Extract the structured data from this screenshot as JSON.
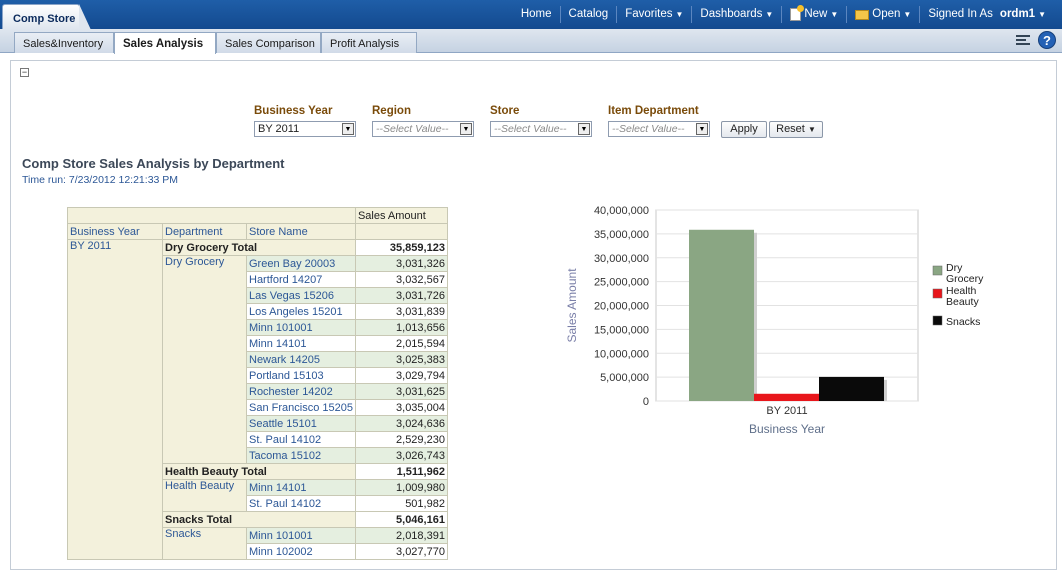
{
  "app": {
    "title": "Comp Store"
  },
  "global_nav": {
    "home": "Home",
    "catalog": "Catalog",
    "favorites": "Favorites",
    "dashboards": "Dashboards",
    "new": "New",
    "open": "Open",
    "signed_in_as": "Signed In As",
    "user": "ordm1"
  },
  "tabs": [
    "Sales&Inventory",
    "Sales Analysis",
    "Sales Comparison",
    "Profit Analysis"
  ],
  "active_tab": "Sales Analysis",
  "prompts": {
    "business_year": {
      "label": "Business Year",
      "value": "BY 2011"
    },
    "region": {
      "label": "Region",
      "placeholder": "--Select Value--"
    },
    "store": {
      "label": "Store",
      "placeholder": "--Select Value--"
    },
    "item_department": {
      "label": "Item Department",
      "placeholder": "--Select Value--"
    },
    "apply": "Apply",
    "reset": "Reset"
  },
  "report": {
    "title": "Comp Store Sales Analysis by Department",
    "time_run": "Time run: 7/23/2012 12:21:33 PM"
  },
  "table": {
    "measure_header": "Sales Amount",
    "col_headers": [
      "Business Year",
      "Department",
      "Store Name"
    ],
    "year": "BY 2011",
    "groups": [
      {
        "total_label": "Dry Grocery Total",
        "total": "35,859,123",
        "department": "Dry Grocery",
        "rows": [
          [
            "Green Bay 20003",
            "3,031,326"
          ],
          [
            "Hartford 14207",
            "3,032,567"
          ],
          [
            "Las Vegas 15206",
            "3,031,726"
          ],
          [
            "Los Angeles 15201",
            "3,031,839"
          ],
          [
            "Minn 101001",
            "1,013,656"
          ],
          [
            "Minn 14101",
            "2,015,594"
          ],
          [
            "Newark 14205",
            "3,025,383"
          ],
          [
            "Portland 15103",
            "3,029,794"
          ],
          [
            "Rochester 14202",
            "3,031,625"
          ],
          [
            "San Francisco 15205",
            "3,035,004"
          ],
          [
            "Seattle 15101",
            "3,024,636"
          ],
          [
            "St. Paul 14102",
            "2,529,230"
          ],
          [
            "Tacoma 15102",
            "3,026,743"
          ]
        ]
      },
      {
        "total_label": "Health Beauty Total",
        "total": "1,511,962",
        "department": "Health Beauty",
        "rows": [
          [
            "Minn 14101",
            "1,009,980"
          ],
          [
            "St. Paul 14102",
            "501,982"
          ]
        ]
      },
      {
        "total_label": "Snacks Total",
        "total": "5,046,161",
        "department": "Snacks",
        "rows": [
          [
            "Minn 101001",
            "2,018,391"
          ],
          [
            "Minn 102002",
            "3,027,770"
          ]
        ]
      }
    ]
  },
  "chart_data": {
    "type": "bar",
    "categories": [
      "BY 2011"
    ],
    "series": [
      {
        "name": "Dry Grocery",
        "values": [
          35859123
        ],
        "color": "#8aa683"
      },
      {
        "name": "Health Beauty",
        "values": [
          1511962
        ],
        "color": "#e8161b"
      },
      {
        "name": "Snacks",
        "values": [
          5046161
        ],
        "color": "#0a0a0a"
      }
    ],
    "xlabel": "Business Year",
    "ylabel": "Sales Amount",
    "ylim": [
      0,
      40000000
    ],
    "yticks": [
      "0",
      "5,000,000",
      "10,000,000",
      "15,000,000",
      "20,000,000",
      "25,000,000",
      "30,000,000",
      "35,000,000",
      "40,000,000"
    ],
    "grid": true,
    "legend": "right"
  }
}
